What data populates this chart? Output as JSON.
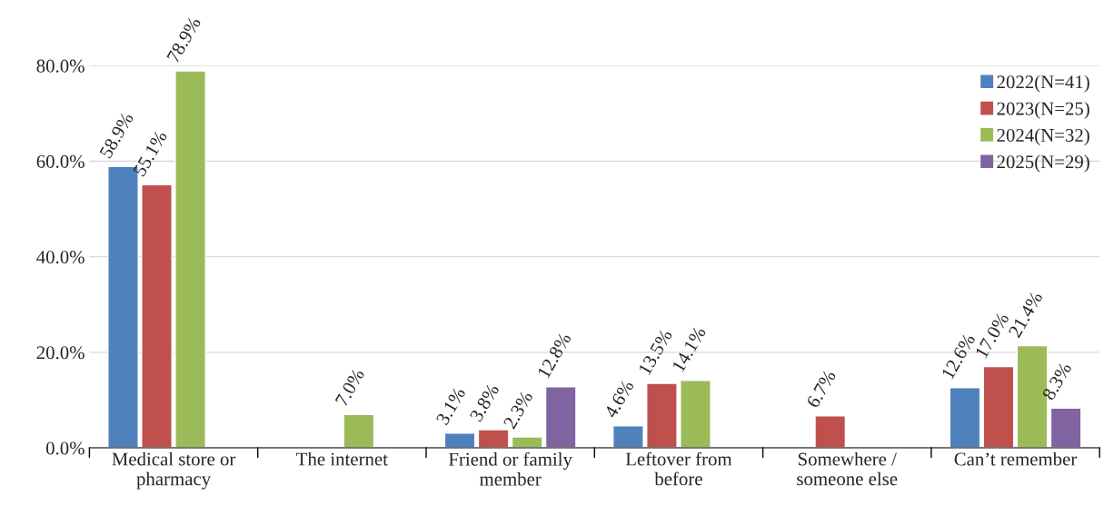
{
  "chart_data": {
    "type": "bar",
    "categories": [
      "Medical store or\npharmacy",
      "The internet",
      "Friend or family\nmember",
      "Leftover from\nbefore",
      "Somewhere /\nsomeone else",
      "Can’t remember"
    ],
    "series": [
      {
        "name": "2022(N=41)",
        "color": "#4f81bd",
        "values": [
          58.9,
          null,
          3.1,
          4.6,
          null,
          12.6
        ]
      },
      {
        "name": "2023(N=25)",
        "color": "#c0504d",
        "values": [
          55.1,
          null,
          3.8,
          13.5,
          6.7,
          17.0
        ]
      },
      {
        "name": "2024(N=32)",
        "color": "#9bbb59",
        "values": [
          78.9,
          7.0,
          2.3,
          14.1,
          null,
          21.4
        ]
      },
      {
        "name": "2025(N=29)",
        "color": "#8064a2",
        "values": [
          null,
          null,
          12.8,
          null,
          null,
          8.3
        ]
      }
    ],
    "value_labels": [
      [
        "58.9%",
        null,
        "3.1%",
        "4.6%",
        null,
        "12.6%"
      ],
      [
        "55.1%",
        null,
        "3.8%",
        "13.5%",
        "6.7%",
        "17.0%"
      ],
      [
        "78.9%",
        "7.0%",
        "2.3%",
        "14.1%",
        null,
        "21.4%"
      ],
      [
        null,
        null,
        "12.8%",
        null,
        null,
        "8.3%"
      ]
    ],
    "ylim": [
      0,
      80
    ],
    "yticks": [
      {
        "value": 0,
        "label": "0.0%"
      },
      {
        "value": 20,
        "label": "20.0%"
      },
      {
        "value": 40,
        "label": "40.0%"
      },
      {
        "value": 60,
        "label": "60.0%"
      },
      {
        "value": 80,
        "label": "80.0%"
      }
    ],
    "grid": "y",
    "legend": "top right"
  }
}
